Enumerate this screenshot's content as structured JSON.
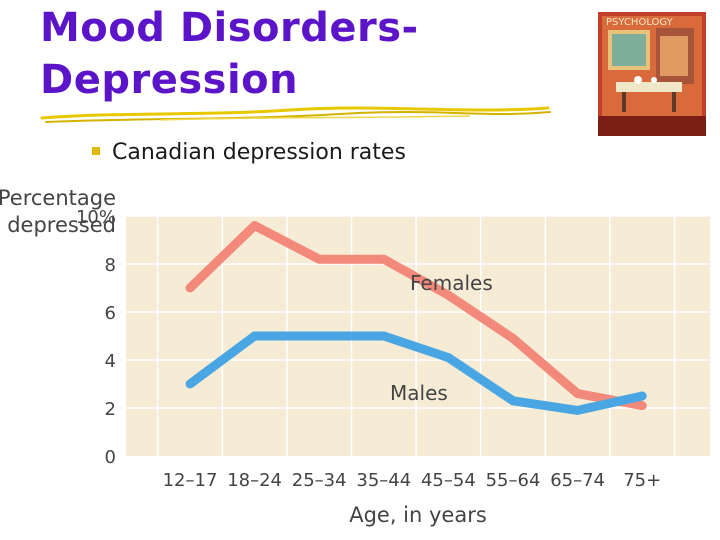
{
  "slide": {
    "title_line1": "Mood Disorders-",
    "title_line2": "Depression",
    "bullet": "Canadian depression rates"
  },
  "book_cover": {
    "title": "PSYCHOLOGY"
  },
  "colors": {
    "title": "#5b14c8",
    "accent": "#e0b800",
    "plot_bg": "#f6ecd6",
    "grid": "#ffffff",
    "females": "#f2897a",
    "males": "#4aa6e3"
  },
  "chart_data": {
    "type": "line",
    "ylabel_line1": "Percentage",
    "ylabel_line2": "depressed",
    "xlabel": "Age, in years",
    "ylim": [
      0,
      10
    ],
    "yticks": [
      "0",
      "2",
      "4",
      "6",
      "8",
      "10%"
    ],
    "categories": [
      "12–17",
      "18–24",
      "25–34",
      "35–44",
      "45–54",
      "55–64",
      "65–74",
      "75+"
    ],
    "series": [
      {
        "name": "Females",
        "values": [
          7.0,
          9.6,
          8.2,
          8.2,
          6.7,
          4.9,
          2.6,
          2.1
        ]
      },
      {
        "name": "Males",
        "values": [
          3.0,
          5.0,
          5.0,
          5.0,
          4.1,
          2.3,
          1.9,
          2.5
        ]
      }
    ]
  }
}
